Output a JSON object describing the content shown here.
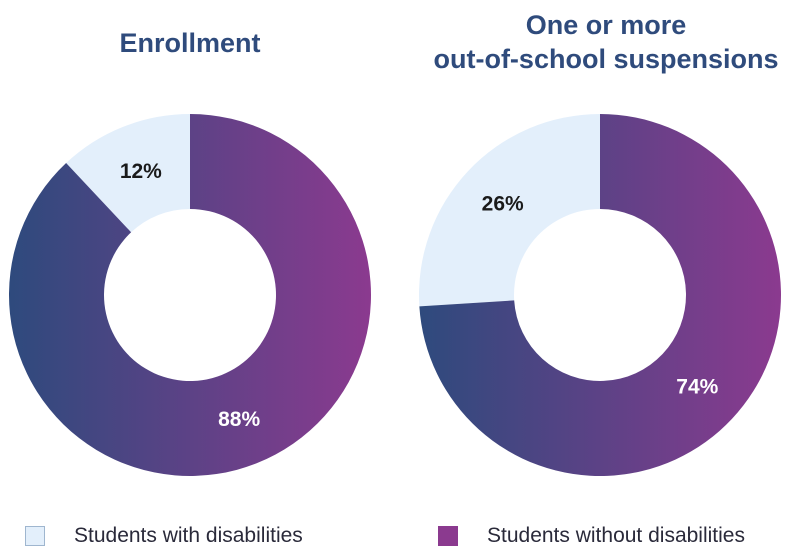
{
  "chart_data": [
    {
      "type": "pie",
      "variant": "donut",
      "title": "Enrollment",
      "slices": [
        {
          "label": "Students with disabilities",
          "value": 12,
          "display": "12%"
        },
        {
          "label": "Students without disabilities",
          "value": 88,
          "display": "88%"
        }
      ]
    },
    {
      "type": "pie",
      "variant": "donut",
      "title": "One or more out-of-school suspensions",
      "title_lines": [
        "One or more",
        "out-of-school suspensions"
      ],
      "slices": [
        {
          "label": "Students with disabilities",
          "value": 26,
          "display": "26%"
        },
        {
          "label": "Students without disabilities",
          "value": 74,
          "display": "74%"
        }
      ]
    }
  ],
  "legend": {
    "placement": "bottom",
    "items": [
      {
        "label": "Students with disabilities",
        "color": "#e3effb"
      },
      {
        "label": "Students without disabilities",
        "color": "#8b3a8f"
      }
    ]
  },
  "colors": {
    "title": "#2f4b7c",
    "with_disabilities_fill": "#e3effb",
    "without_gradient_start": "#2e4a7d",
    "without_gradient_end": "#8b3a8f",
    "label_on_light": "#1a1a1a",
    "label_on_dark": "#ffffff"
  }
}
